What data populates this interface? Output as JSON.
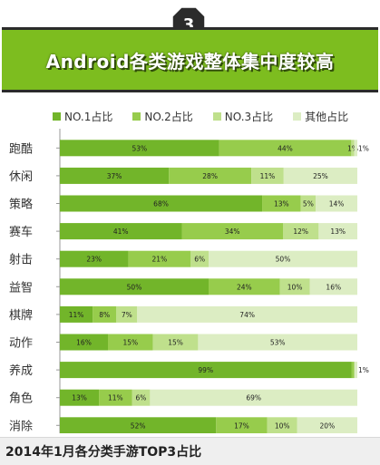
{
  "badge_number": "3",
  "chart_data": {
    "type": "bar",
    "stacked": true,
    "orientation": "horizontal",
    "title": "Android各类游戏整体集中度较高",
    "caption": "2014年1月各分类手游TOP3占比",
    "categories": [
      "跑酷",
      "休闲",
      "策略",
      "赛车",
      "射击",
      "益智",
      "棋牌",
      "动作",
      "养成",
      "角色",
      "消除"
    ],
    "series": [
      {
        "name": "NO.1占比",
        "color": "#72b52a",
        "values": [
          53,
          37,
          68,
          41,
          23,
          50,
          11,
          16,
          99,
          13,
          52
        ]
      },
      {
        "name": "NO.2占比",
        "color": "#97cc4c",
        "values": [
          44,
          28,
          13,
          34,
          21,
          24,
          8,
          15,
          1,
          11,
          17
        ]
      },
      {
        "name": "NO.3占比",
        "color": "#bfe08c",
        "values": [
          1,
          11,
          5,
          12,
          6,
          10,
          7,
          15,
          0,
          6,
          10
        ]
      },
      {
        "name": "其他占比",
        "color": "#dcedc3",
        "values": [
          1,
          25,
          14,
          13,
          50,
          16,
          74,
          53,
          1,
          69,
          20
        ]
      }
    ],
    "labels": [
      [
        "53%",
        "44%",
        "1%",
        "1%"
      ],
      [
        "37%",
        "28%",
        "11%",
        "25%"
      ],
      [
        "68%",
        "13%",
        "5%",
        "14%"
      ],
      [
        "41%",
        "34%",
        "12%",
        "13%"
      ],
      [
        "23%",
        "21%",
        "6%",
        "50%"
      ],
      [
        "50%",
        "24%",
        "10%",
        "16%"
      ],
      [
        "11%",
        "8%",
        "7%",
        "74%"
      ],
      [
        "16%",
        "15%",
        "15%",
        "53%"
      ],
      [
        "99%",
        "",
        "",
        "1%"
      ],
      [
        "13%",
        "11%",
        "6%",
        "69%"
      ],
      [
        "52%",
        "17%",
        "10%",
        "20%"
      ]
    ],
    "xlim": [
      0,
      100
    ],
    "legend_position": "top",
    "grid": false
  }
}
